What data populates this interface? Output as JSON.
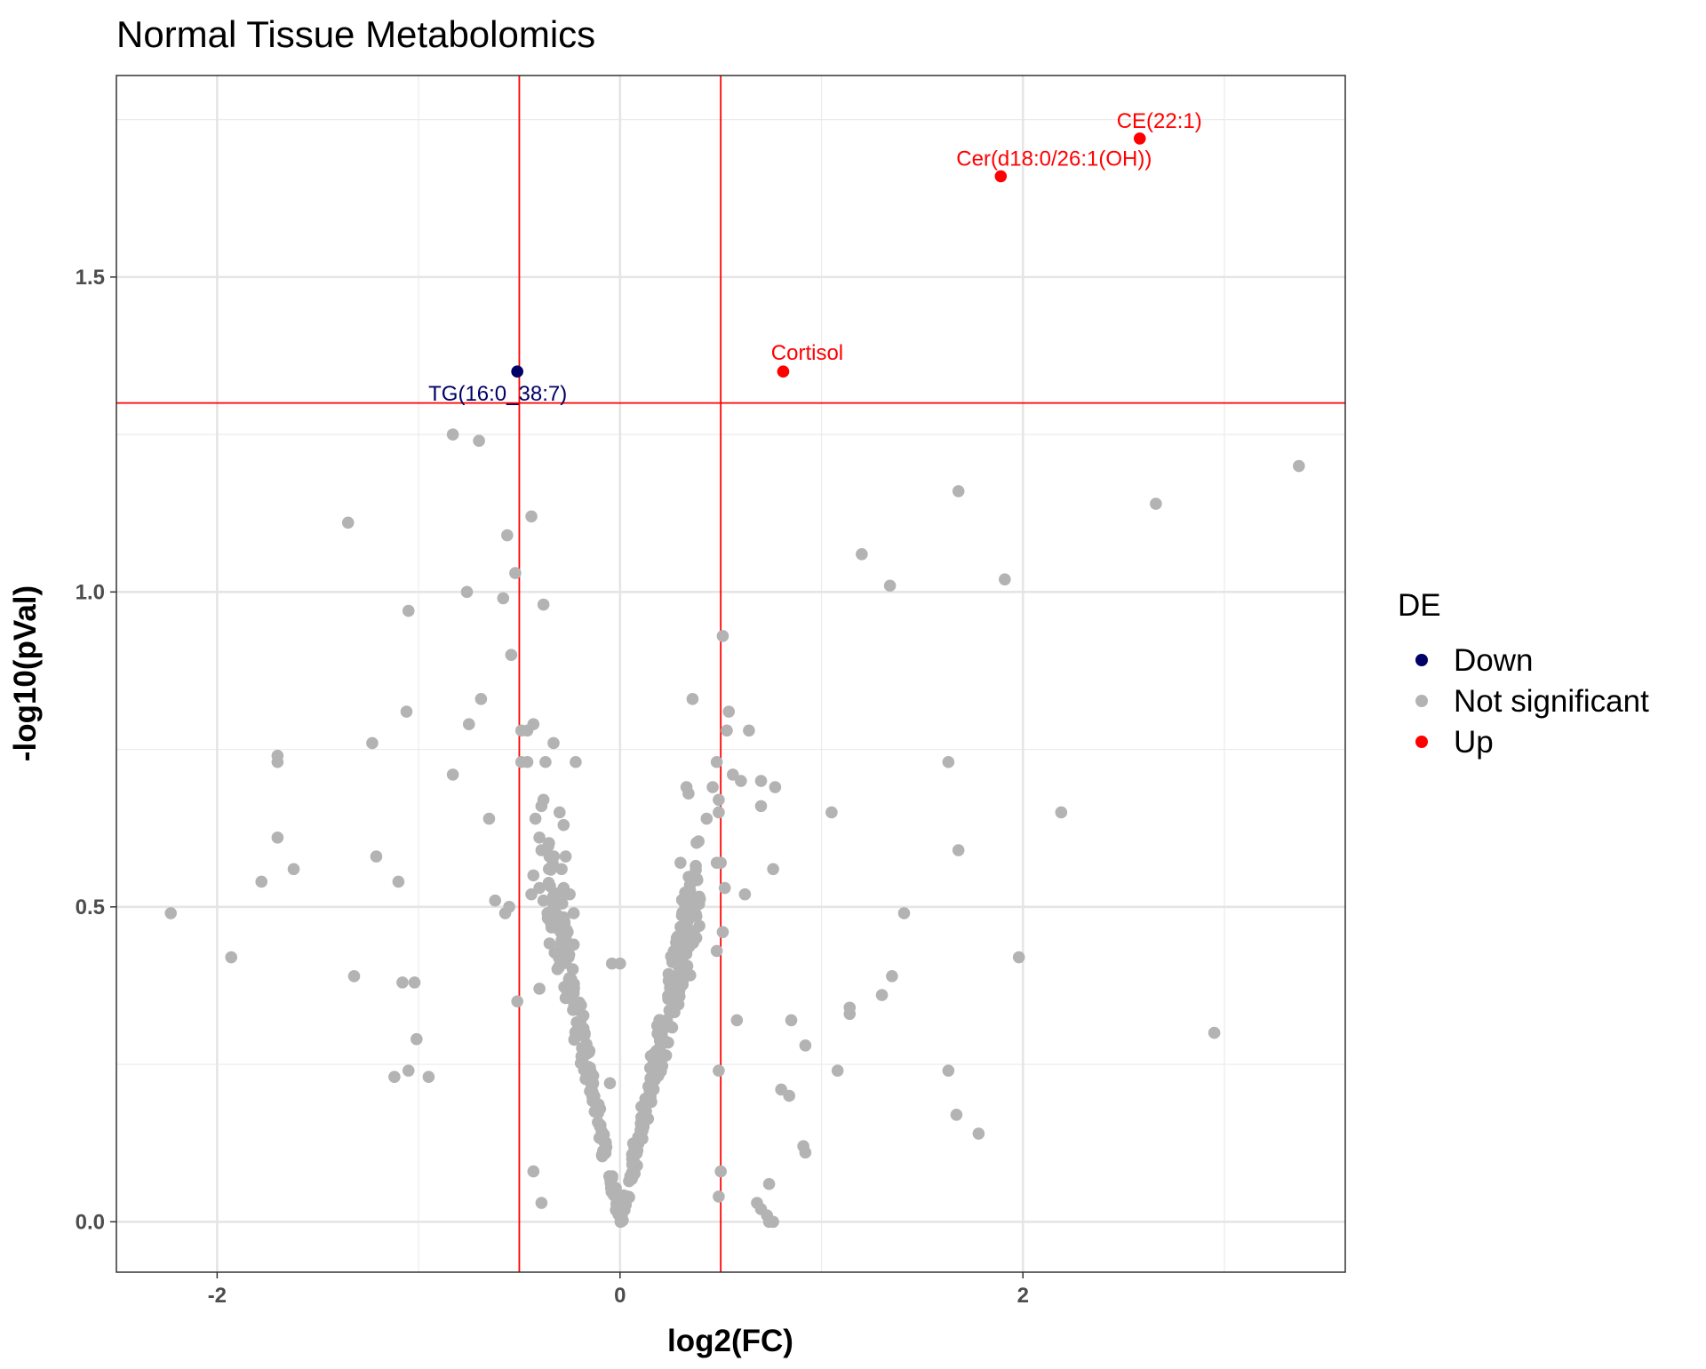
{
  "chart_data": {
    "type": "scatter",
    "title": "Normal Tissue Metabolomics",
    "xlabel": "log2(FC)",
    "ylabel": "-log10(pVal)",
    "xlim": [
      -2.5,
      3.6
    ],
    "ylim": [
      -0.08,
      1.82
    ],
    "x_ticks": [
      -2,
      0,
      2
    ],
    "x_tick_labels": [
      "-2",
      "0",
      "2"
    ],
    "y_ticks": [
      0.0,
      0.5,
      1.0,
      1.5
    ],
    "y_tick_labels": [
      "0.0",
      "0.5",
      "1.0",
      "1.5"
    ],
    "grid": true,
    "thresholds": {
      "vlines": [
        -0.5,
        0.5
      ],
      "hline": 1.3,
      "color": "#ff0000"
    },
    "legend": {
      "title": "DE",
      "position": "right",
      "entries": [
        {
          "label": "Down",
          "color": "#000066"
        },
        {
          "label": "Not significant",
          "color": "#b3b3b3"
        },
        {
          "label": "Up",
          "color": "#ff0000"
        }
      ]
    },
    "series": [
      {
        "name": "Down",
        "color": "#000066",
        "points": [
          {
            "x": -0.51,
            "y": 1.35,
            "label": "TG(16:0_38:7)"
          }
        ]
      },
      {
        "name": "Up",
        "color": "#ff0000",
        "points": [
          {
            "x": 2.58,
            "y": 1.72,
            "label": "CE(22:1)"
          },
          {
            "x": 1.89,
            "y": 1.66,
            "label": "Cer(d18:0/26:1(OH))"
          },
          {
            "x": 0.81,
            "y": 1.35,
            "label": "Cortisol"
          }
        ]
      },
      {
        "name": "Not significant",
        "color": "#b3b3b3",
        "points": [
          [
            3.37,
            1.2
          ],
          [
            2.66,
            1.14
          ],
          [
            1.68,
            1.16
          ],
          [
            1.91,
            1.02
          ],
          [
            1.34,
            1.01
          ],
          [
            1.2,
            1.06
          ],
          [
            2.19,
            0.65
          ],
          [
            1.63,
            0.73
          ],
          [
            1.68,
            0.59
          ],
          [
            1.41,
            0.49
          ],
          [
            1.98,
            0.42
          ],
          [
            2.95,
            0.3
          ],
          [
            1.35,
            0.39
          ],
          [
            1.3,
            0.36
          ],
          [
            1.14,
            0.34
          ],
          [
            1.14,
            0.33
          ],
          [
            1.08,
            0.24
          ],
          [
            1.63,
            0.24
          ],
          [
            1.67,
            0.17
          ],
          [
            1.78,
            0.14
          ],
          [
            1.05,
            0.65
          ],
          [
            0.92,
            0.28
          ],
          [
            0.85,
            0.32
          ],
          [
            0.8,
            0.21
          ],
          [
            0.84,
            0.2
          ],
          [
            0.91,
            0.12
          ],
          [
            0.92,
            0.11
          ],
          [
            0.74,
            0.06
          ],
          [
            0.68,
            0.03
          ],
          [
            0.7,
            0.02
          ],
          [
            0.73,
            0.01
          ],
          [
            0.74,
            0.0
          ],
          [
            0.76,
            0.0
          ],
          [
            0.77,
            0.69
          ],
          [
            0.7,
            0.7
          ],
          [
            0.7,
            0.66
          ],
          [
            0.64,
            0.78
          ],
          [
            0.6,
            0.7
          ],
          [
            0.56,
            0.71
          ],
          [
            0.54,
            0.81
          ],
          [
            0.53,
            0.78
          ],
          [
            0.62,
            0.52
          ],
          [
            0.51,
            0.93
          ],
          [
            0.48,
            0.73
          ],
          [
            0.46,
            0.69
          ],
          [
            0.49,
            0.67
          ],
          [
            0.49,
            0.65
          ],
          [
            0.5,
            0.57
          ],
          [
            0.48,
            0.57
          ],
          [
            0.52,
            0.53
          ],
          [
            0.51,
            0.46
          ],
          [
            0.48,
            0.43
          ],
          [
            0.49,
            0.24
          ],
          [
            0.5,
            0.08
          ],
          [
            0.49,
            0.04
          ],
          [
            0.58,
            0.32
          ],
          [
            0.76,
            0.56
          ],
          [
            0.43,
            0.64
          ],
          [
            -0.04,
            0.41
          ],
          [
            0.0,
            0.41
          ],
          [
            -0.05,
            0.22
          ],
          [
            0.36,
            0.83
          ],
          [
            0.33,
            0.69
          ],
          [
            0.34,
            0.68
          ],
          [
            0.3,
            0.57
          ],
          [
            -2.23,
            0.49
          ],
          [
            -1.93,
            0.42
          ],
          [
            -1.78,
            0.54
          ],
          [
            -1.7,
            0.61
          ],
          [
            -1.7,
            0.73
          ],
          [
            -1.7,
            0.74
          ],
          [
            -1.62,
            0.56
          ],
          [
            -1.35,
            1.11
          ],
          [
            -1.32,
            0.39
          ],
          [
            -1.23,
            0.76
          ],
          [
            -1.21,
            0.58
          ],
          [
            -1.12,
            0.23
          ],
          [
            -1.1,
            0.54
          ],
          [
            -1.08,
            0.38
          ],
          [
            -1.06,
            0.81
          ],
          [
            -1.05,
            0.97
          ],
          [
            -1.05,
            0.24
          ],
          [
            -1.02,
            0.38
          ],
          [
            -1.01,
            0.29
          ],
          [
            -0.95,
            0.23
          ],
          [
            -0.83,
            1.25
          ],
          [
            -0.83,
            0.71
          ],
          [
            -0.76,
            1.0
          ],
          [
            -0.75,
            0.79
          ],
          [
            -0.7,
            1.24
          ],
          [
            -0.69,
            0.83
          ],
          [
            -0.65,
            0.64
          ],
          [
            -0.62,
            0.51
          ],
          [
            -0.58,
            0.99
          ],
          [
            -0.57,
            0.49
          ],
          [
            -0.55,
            0.5
          ],
          [
            -0.56,
            1.09
          ],
          [
            -0.54,
            0.9
          ],
          [
            -0.52,
            1.03
          ],
          [
            -0.51,
            0.35
          ],
          [
            -0.49,
            0.78
          ],
          [
            -0.49,
            0.73
          ],
          [
            -0.46,
            0.78
          ],
          [
            -0.46,
            0.73
          ],
          [
            -0.44,
            1.12
          ],
          [
            -0.43,
            0.79
          ],
          [
            -0.38,
            0.98
          ],
          [
            -0.38,
            0.67
          ],
          [
            -0.39,
            0.66
          ],
          [
            -0.42,
            0.64
          ],
          [
            -0.4,
            0.61
          ],
          [
            -0.39,
            0.59
          ],
          [
            -0.43,
            0.55
          ],
          [
            -0.44,
            0.52
          ],
          [
            -0.4,
            0.53
          ],
          [
            -0.38,
            0.51
          ],
          [
            -0.36,
            0.49
          ],
          [
            -0.35,
            0.58
          ],
          [
            -0.33,
            0.76
          ],
          [
            -0.37,
            0.73
          ],
          [
            -0.4,
            0.37
          ],
          [
            -0.43,
            0.08
          ],
          [
            -0.39,
            0.03
          ],
          [
            -0.22,
            0.73
          ],
          [
            -0.3,
            0.65
          ],
          [
            -0.28,
            0.63
          ],
          [
            -0.27,
            0.58
          ],
          [
            -0.29,
            0.56
          ],
          [
            -0.28,
            0.53
          ],
          [
            -0.25,
            0.52
          ],
          [
            -0.23,
            0.49
          ],
          [
            -0.26,
            0.46
          ],
          [
            -0.23,
            0.44
          ]
        ],
        "cluster": {
          "count": 360,
          "x_range": [
            -0.36,
            0.4
          ],
          "y_range": [
            0.0,
            0.62
          ],
          "shape": "V",
          "seed": 20240511
        }
      }
    ]
  }
}
